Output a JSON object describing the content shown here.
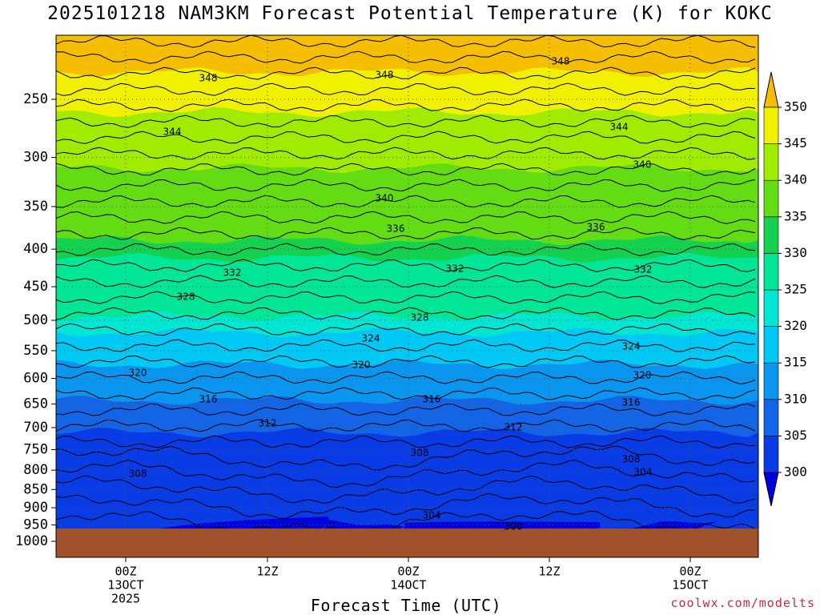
{
  "title": "2025101218 NAM3KM Forecast Potential Temperature (K) for KOKC",
  "credit": "coolwx.com/modelts",
  "chart_data": {
    "type": "heatmap",
    "title": "2025101218 NAM3KM Forecast Potential Temperature (K) for KOKC",
    "xlabel": "Forecast Time (UTC)",
    "ylabel": "",
    "y_scale": "log-pressure (inverted)",
    "ylim": [
      1000,
      200
    ],
    "y_ticks": [
      250,
      300,
      350,
      400,
      450,
      500,
      550,
      600,
      650,
      700,
      750,
      800,
      850,
      900,
      950,
      1000
    ],
    "x_ticks": [
      {
        "lines": [
          "00Z",
          "13OCT",
          "2025"
        ]
      },
      {
        "lines": [
          "12Z"
        ]
      },
      {
        "lines": [
          "00Z",
          "14OCT"
        ]
      },
      {
        "lines": [
          "12Z"
        ]
      },
      {
        "lines": [
          "00Z",
          "15OCT"
        ]
      }
    ],
    "colorbar": {
      "levels": [
        300,
        305,
        310,
        315,
        320,
        325,
        330,
        335,
        340,
        345,
        350
      ],
      "labels": [
        "300",
        "305",
        "310",
        "315",
        "320",
        "325",
        "330",
        "335",
        "340",
        "345",
        "350"
      ],
      "colors": [
        "#0000dc",
        "#0a3ce6",
        "#1464e6",
        "#0a96ee",
        "#00c8f5",
        "#00e6d2",
        "#00e696",
        "#14d250",
        "#64dc14",
        "#a0eb00",
        "#f0f000",
        "#f5be00"
      ]
    },
    "grid": true,
    "ground_color": "#a0522d",
    "contour_labels": [
      {
        "text": "348"
      },
      {
        "text": "348"
      },
      {
        "text": "348"
      },
      {
        "text": "344"
      },
      {
        "text": "344"
      },
      {
        "text": "340"
      },
      {
        "text": "340"
      },
      {
        "text": "336"
      },
      {
        "text": "336"
      },
      {
        "text": "332"
      },
      {
        "text": "332"
      },
      {
        "text": "332"
      },
      {
        "text": "328"
      },
      {
        "text": "328"
      },
      {
        "text": "324"
      },
      {
        "text": "324"
      },
      {
        "text": "320"
      },
      {
        "text": "320"
      },
      {
        "text": "320"
      },
      {
        "text": "316"
      },
      {
        "text": "316"
      },
      {
        "text": "316"
      },
      {
        "text": "312"
      },
      {
        "text": "312"
      },
      {
        "text": "308"
      },
      {
        "text": "308"
      },
      {
        "text": "308"
      },
      {
        "text": "304"
      },
      {
        "text": "304"
      },
      {
        "text": "300"
      }
    ]
  }
}
